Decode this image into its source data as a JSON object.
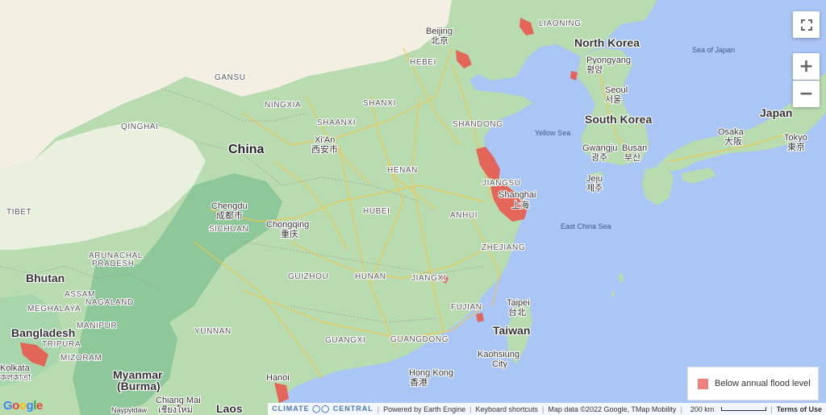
{
  "map": {
    "countries": {
      "china": "China",
      "north_korea": "North Korea",
      "south_korea": "South Korea",
      "japan": "Japan",
      "bhutan": "Bhutan",
      "bangladesh": "Bangladesh",
      "myanmar": "Myanmar",
      "myanmar_alt": "(Burma)",
      "laos": "Laos",
      "taiwan": "Taiwan"
    },
    "provinces": {
      "liaoning": "LIAONING",
      "hebei": "HEBEI",
      "gansu": "GANSU",
      "ningxia": "NINGXIA",
      "shanxi": "SHANXI",
      "qinghai": "QINGHAI",
      "shaanxi": "SHAANXI",
      "shandong": "SHANDONG",
      "henan": "HENAN",
      "jiangsu": "JIANGSU",
      "hubei": "HUBEI",
      "anhui": "ANHUI",
      "sichuan": "SICHUAN",
      "tibet": "TIBET",
      "zhejiang": "ZHEJIANG",
      "guizhou": "GUIZHOU",
      "hunan": "HUNAN",
      "jiangxi": "JIANGXI",
      "fujian": "FUJIAN",
      "yunnan": "YUNNAN",
      "guangxi": "GUANGXI",
      "guangdong": "GUANGDONG",
      "arunachal": "ARUNACHAL",
      "arunachal2": "PRADESH",
      "assam": "ASSAM",
      "nagaland": "NAGALAND",
      "meghalaya": "MEGHALAYA",
      "manipur": "MANIPUR",
      "tripura": "TRIPURA",
      "mizoram": "MIZORAM"
    },
    "cities": {
      "beijing": "Beijing",
      "beijing_cn": "北京",
      "pyongyang": "Pyongyang",
      "pyongyang_kr": "평양",
      "seoul": "Seoul",
      "seoul_kr": "서울",
      "xian": "Xi'An",
      "xian_cn": "西安市",
      "shanghai": "Shanghai",
      "shanghai_cn": "上海",
      "gwangju": "Gwangju",
      "gwangju_kr": "광주",
      "busan": "Busan",
      "busan_kr": "부산",
      "jeju": "Jeju",
      "jeju_kr": "제주",
      "osaka": "Osaka",
      "osaka_jp": "大阪",
      "tokyo": "Tokyo",
      "tokyo_jp": "東京",
      "chengdu": "Chengdu",
      "chengdu_cn": "成都市",
      "chongqing": "Chongqing",
      "chongqing_cn": "重庆",
      "taipei": "Taipei",
      "taipei_cn": "台北",
      "kaohsiung": "Kaohsiung",
      "kaohsiung2": "City",
      "hongkong": "Hong Kong",
      "hongkong_cn": "香港",
      "hanoi": "Hanoi",
      "kolkata": "Kolkata",
      "kolkata_bn": "কলকাতা",
      "chiangmai": "Chiang Mai",
      "chiangmai_th": "เชียงใหม่",
      "naypyidaw": "Naypyidaw"
    },
    "seas": {
      "japan": "Sea of Japan",
      "yellow": "Yellow Sea",
      "east_china": "East China Sea"
    }
  },
  "controls": {
    "fullscreen_icon": "fullscreen-icon",
    "zoom_in": "+",
    "zoom_out": "−"
  },
  "legend": {
    "label": "Below annual flood level",
    "color": "#f08080"
  },
  "attribution": {
    "brand": "CLIMATE ◯◯ CENTRAL",
    "powered": "Powered by Earth Engine",
    "shortcuts": "Keyboard shortcuts",
    "mapdata": "Map data ©2022 Google, TMap Mobility",
    "scale": "200 km",
    "terms": "Terms of Use"
  },
  "logo": "Google",
  "colors": {
    "water": "#aac6f5",
    "land_green": "#9fd0a5",
    "land_dark_green": "#7fc090",
    "land_beige": "#f3efe3",
    "road": "#f5c542",
    "flood": "#e85a4f"
  }
}
